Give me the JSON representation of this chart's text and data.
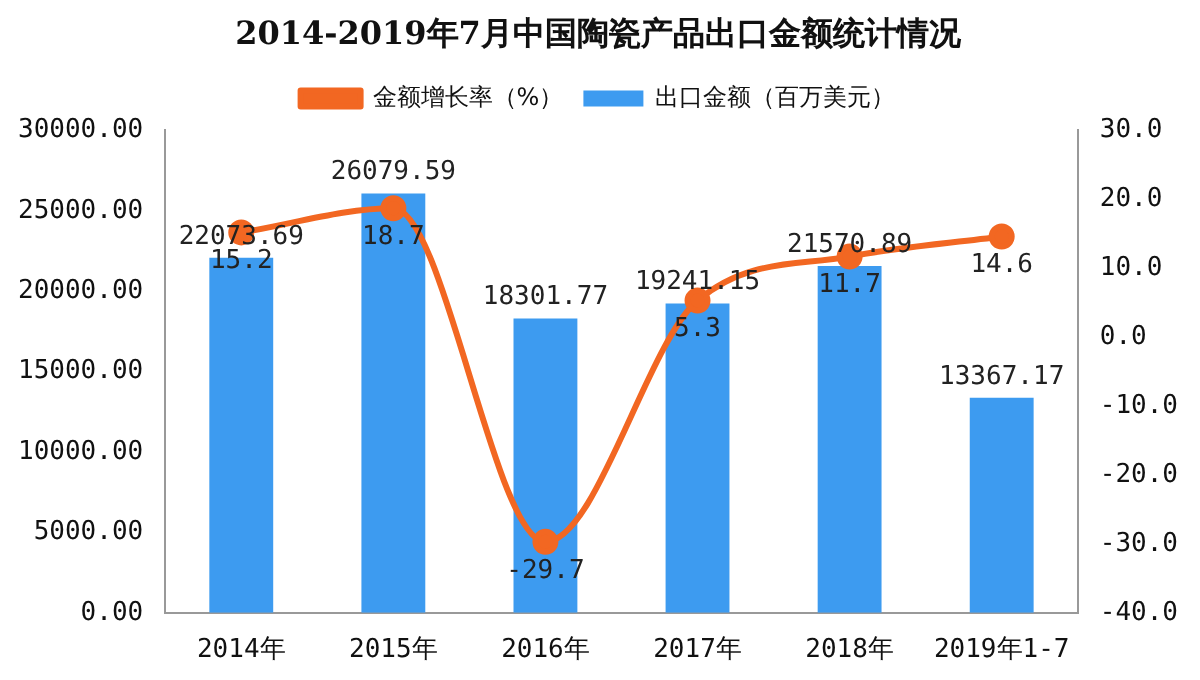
{
  "chart_data": {
    "type": "bar",
    "title": "2014-2019年7月中国陶瓷产品出口金额统计情况",
    "categories": [
      "2014年",
      "2015年",
      "2016年",
      "2017年",
      "2018年",
      "2019年1-7"
    ],
    "series": [
      {
        "name": "出口金额（百万美元）",
        "color": "#3d9bf0",
        "values": [
          22073.69,
          26079.59,
          18301.77,
          19241.15,
          21570.89,
          13367.17
        ]
      },
      {
        "name": "金额增长率（%）",
        "type": "line",
        "axis": "y2",
        "color": "#f26722",
        "values": [
          15.2,
          18.7,
          -29.7,
          5.3,
          11.7,
          14.6
        ]
      }
    ],
    "ylim": [
      0,
      30000
    ],
    "yticks": [
      {
        "value": 0,
        "label": "0.00"
      },
      {
        "value": 5000,
        "label": "5000.00"
      },
      {
        "value": 10000,
        "label": "10000.00"
      },
      {
        "value": 15000,
        "label": "15000.00"
      },
      {
        "value": 20000,
        "label": "20000.00"
      },
      {
        "value": 25000,
        "label": "25000.00"
      },
      {
        "value": 30000,
        "label": "30000.00"
      }
    ],
    "y2lim": [
      -40,
      30
    ],
    "y2ticks": [
      {
        "value": -40,
        "label": "-40.0"
      },
      {
        "value": -30,
        "label": "-30.0"
      },
      {
        "value": -20,
        "label": "-20.0"
      },
      {
        "value": -10,
        "label": "-10.0"
      },
      {
        "value": 0,
        "label": "0.0"
      },
      {
        "value": 10,
        "label": "10.0"
      },
      {
        "value": 20,
        "label": "20.0"
      },
      {
        "value": 30,
        "label": "30.0"
      }
    ],
    "marker": "circle",
    "legend": "top",
    "grid": false,
    "data_labels": true
  }
}
